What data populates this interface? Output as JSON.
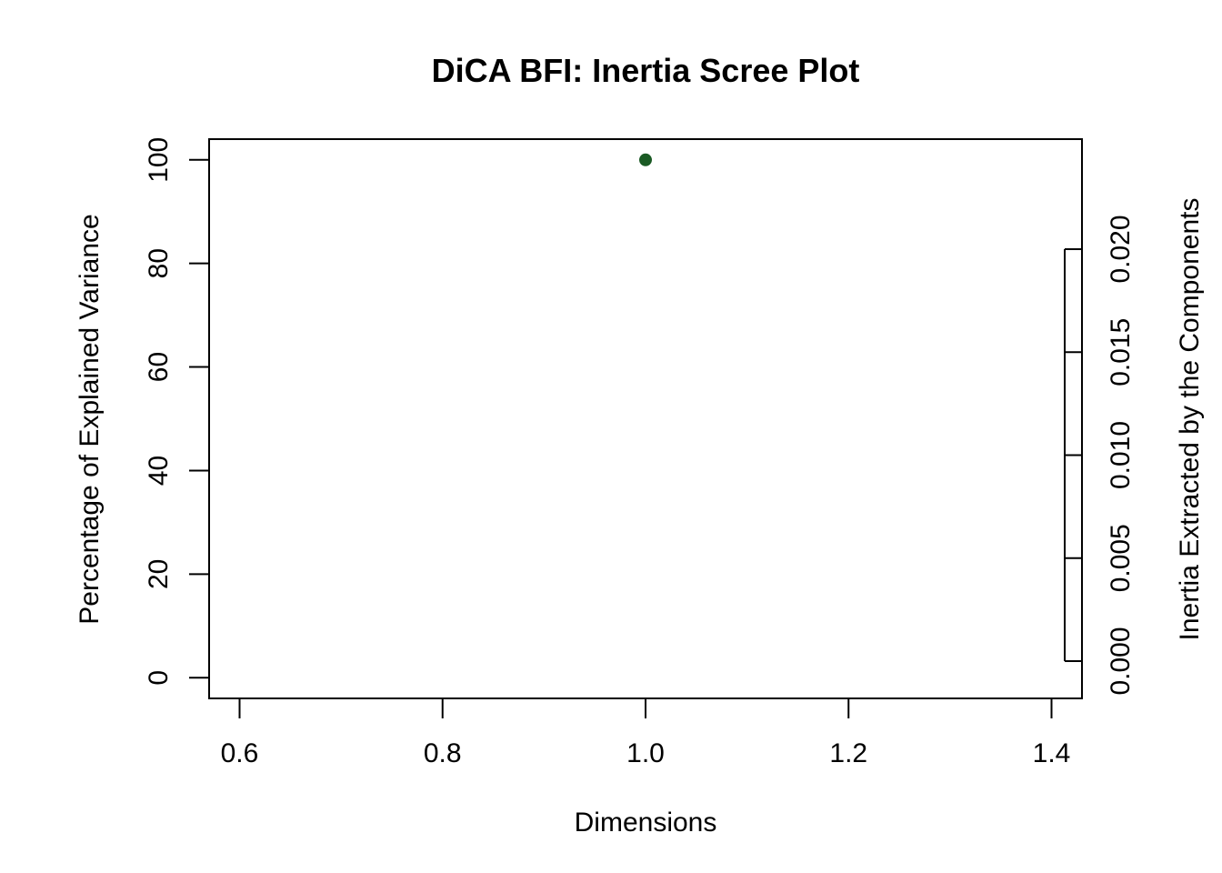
{
  "chart_data": {
    "type": "scatter",
    "title": "DiCA BFI: Inertia Scree Plot",
    "xlabel": "Dimensions",
    "ylabel": "Percentage of Explained Variance",
    "ylabel_right": "Inertia Extracted by the Components",
    "xlim": [
      0.57,
      1.43
    ],
    "ylim": [
      -4,
      104
    ],
    "x_ticks": [
      0.6,
      0.8,
      1.0,
      1.2,
      1.4
    ],
    "x_tick_labels": [
      "0.6",
      "0.8",
      "1.0",
      "1.2",
      "1.4"
    ],
    "y_ticks": [
      0,
      20,
      40,
      60,
      80,
      100
    ],
    "y_tick_labels": [
      "0",
      "20",
      "40",
      "60",
      "80",
      "100"
    ],
    "y_right_ticks": [
      0.0,
      0.005,
      0.01,
      0.015,
      0.02
    ],
    "y_right_tick_labels": [
      "0.000",
      "0.005",
      "0.010",
      "0.015",
      "0.020"
    ],
    "y_right_range": [
      0.0,
      0.02
    ],
    "series": [
      {
        "x": [
          1.0
        ],
        "y": [
          100
        ],
        "color": "#1a5a24"
      }
    ],
    "grid": false,
    "legend": "none"
  }
}
